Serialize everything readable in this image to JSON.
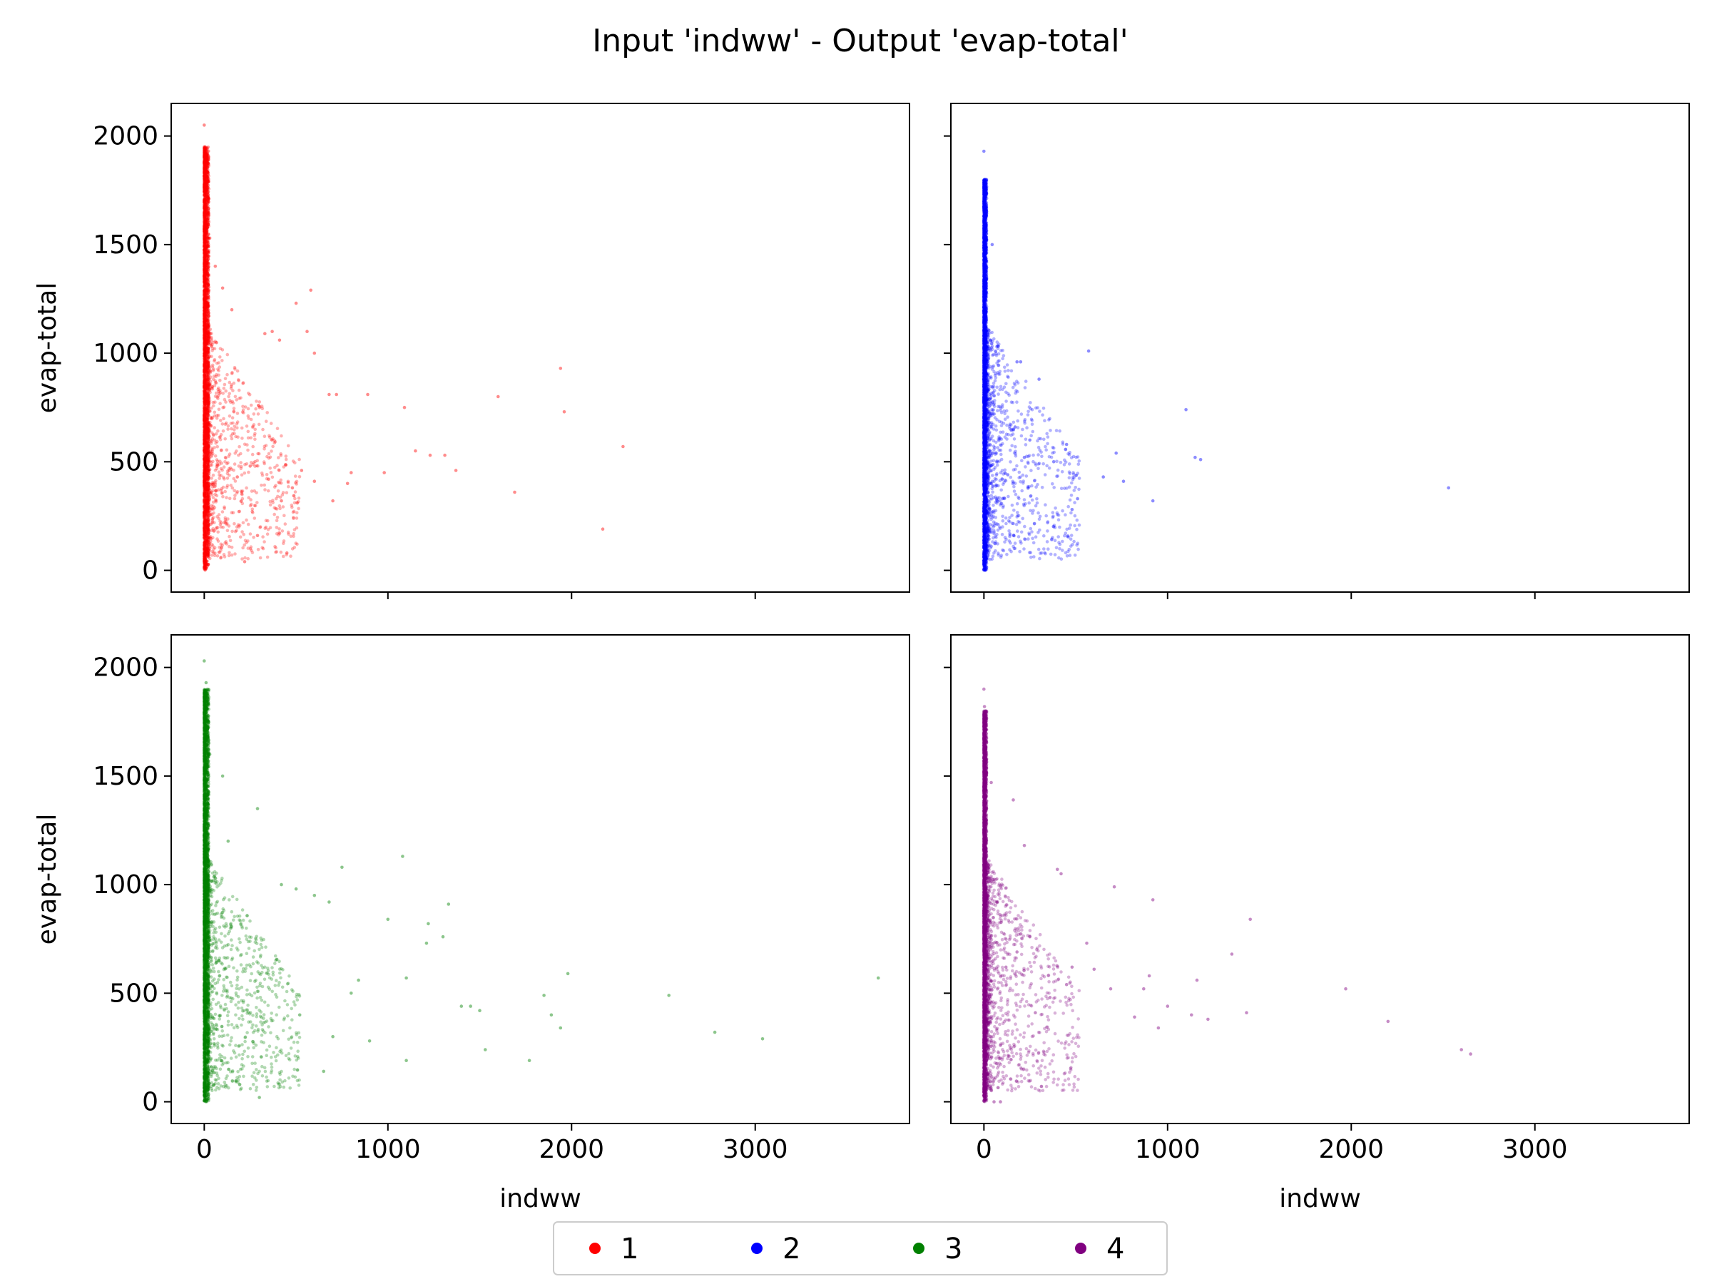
{
  "title": "Input 'indww' - Output 'evap-total'",
  "colors": {
    "1": "#ff0000",
    "2": "#0000ff",
    "3": "#008000",
    "4": "#800080"
  },
  "legend": {
    "placement": "bottom-center",
    "entries": [
      "1",
      "2",
      "3",
      "4"
    ]
  },
  "chart_data": {
    "type": "scatter",
    "layout": "2x2 grid, shared x and y axes",
    "xlabel": "indww",
    "ylabel": "evap-total",
    "xlim": [
      -180,
      3840
    ],
    "ylim": [
      -100,
      2150
    ],
    "xticks": [
      0,
      1000,
      2000,
      3000
    ],
    "yticks": [
      0,
      500,
      1000,
      1500,
      2000
    ],
    "grid": false,
    "panels": [
      {
        "series": "1",
        "color": "#ff0000",
        "dense_band": {
          "x_range": [
            0,
            25
          ],
          "y_range": [
            0,
            1950
          ]
        },
        "points": [
          [
            0,
            2050
          ],
          [
            5,
            1950
          ],
          [
            12,
            1880
          ],
          [
            30,
            1530
          ],
          [
            60,
            1400
          ],
          [
            100,
            1300
          ],
          [
            150,
            1200
          ],
          [
            500,
            1230
          ],
          [
            580,
            1290
          ],
          [
            560,
            1100
          ],
          [
            330,
            1090
          ],
          [
            370,
            1100
          ],
          [
            410,
            1060
          ],
          [
            600,
            1000
          ],
          [
            680,
            810
          ],
          [
            720,
            810
          ],
          [
            890,
            810
          ],
          [
            1090,
            750
          ],
          [
            1600,
            800
          ],
          [
            1940,
            930
          ],
          [
            1960,
            730
          ],
          [
            1150,
            550
          ],
          [
            1230,
            530
          ],
          [
            1310,
            530
          ],
          [
            1370,
            460
          ],
          [
            2280,
            570
          ],
          [
            800,
            450
          ],
          [
            780,
            400
          ],
          [
            980,
            450
          ],
          [
            700,
            320
          ],
          [
            1690,
            360
          ],
          [
            2170,
            190
          ],
          [
            450,
            80
          ],
          [
            220,
            40
          ],
          [
            290,
            160
          ],
          [
            350,
            420
          ],
          [
            420,
            320
          ],
          [
            480,
            380
          ],
          [
            530,
            460
          ],
          [
            600,
            410
          ],
          [
            250,
            480
          ],
          [
            180,
            430
          ]
        ]
      },
      {
        "series": "2",
        "color": "#0000ff",
        "dense_band": {
          "x_range": [
            0,
            15
          ],
          "y_range": [
            0,
            1800
          ]
        },
        "points": [
          [
            0,
            1930
          ],
          [
            5,
            1800
          ],
          [
            45,
            1500
          ],
          [
            180,
            960
          ],
          [
            200,
            960
          ],
          [
            300,
            880
          ],
          [
            570,
            1010
          ],
          [
            1100,
            740
          ],
          [
            1150,
            520
          ],
          [
            1180,
            510
          ],
          [
            2530,
            380
          ],
          [
            450,
            580
          ],
          [
            480,
            280
          ],
          [
            510,
            330
          ],
          [
            650,
            430
          ],
          [
            720,
            540
          ],
          [
            760,
            410
          ],
          [
            920,
            320
          ],
          [
            130,
            440
          ],
          [
            220,
            520
          ],
          [
            250,
            600
          ],
          [
            380,
            500
          ],
          [
            170,
            660
          ]
        ]
      },
      {
        "series": "3",
        "color": "#008000",
        "dense_band": {
          "x_range": [
            0,
            25
          ],
          "y_range": [
            0,
            1900
          ]
        },
        "points": [
          [
            0,
            2030
          ],
          [
            10,
            1930
          ],
          [
            30,
            1600
          ],
          [
            100,
            1500
          ],
          [
            290,
            1350
          ],
          [
            130,
            1200
          ],
          [
            750,
            1080
          ],
          [
            1080,
            1130
          ],
          [
            420,
            1000
          ],
          [
            500,
            980
          ],
          [
            600,
            950
          ],
          [
            680,
            920
          ],
          [
            1000,
            840
          ],
          [
            1330,
            910
          ],
          [
            1220,
            820
          ],
          [
            1300,
            760
          ],
          [
            1210,
            730
          ],
          [
            1100,
            570
          ],
          [
            1400,
            440
          ],
          [
            1450,
            440
          ],
          [
            1500,
            420
          ],
          [
            1980,
            590
          ],
          [
            1850,
            490
          ],
          [
            1890,
            400
          ],
          [
            1940,
            340
          ],
          [
            2530,
            490
          ],
          [
            2780,
            320
          ],
          [
            3040,
            290
          ],
          [
            3670,
            570
          ],
          [
            1530,
            240
          ],
          [
            1770,
            190
          ],
          [
            1100,
            190
          ],
          [
            900,
            280
          ],
          [
            650,
            140
          ],
          [
            300,
            20
          ],
          [
            520,
            400
          ],
          [
            700,
            300
          ],
          [
            800,
            500
          ],
          [
            840,
            560
          ]
        ]
      },
      {
        "series": "4",
        "color": "#800080",
        "dense_band": {
          "x_range": [
            0,
            15
          ],
          "y_range": [
            0,
            1800
          ]
        },
        "points": [
          [
            0,
            1900
          ],
          [
            3,
            1820
          ],
          [
            40,
            1470
          ],
          [
            160,
            1390
          ],
          [
            220,
            1180
          ],
          [
            400,
            1070
          ],
          [
            420,
            1050
          ],
          [
            710,
            990
          ],
          [
            920,
            930
          ],
          [
            1450,
            840
          ],
          [
            1350,
            680
          ],
          [
            1160,
            560
          ],
          [
            1130,
            400
          ],
          [
            1220,
            380
          ],
          [
            1430,
            410
          ],
          [
            1970,
            520
          ],
          [
            2200,
            370
          ],
          [
            2650,
            220
          ],
          [
            2600,
            240
          ],
          [
            870,
            520
          ],
          [
            900,
            580
          ],
          [
            1000,
            440
          ],
          [
            950,
            340
          ],
          [
            820,
            390
          ],
          [
            690,
            520
          ],
          [
            600,
            610
          ],
          [
            560,
            730
          ],
          [
            480,
            620
          ],
          [
            450,
            540
          ],
          [
            360,
            480
          ],
          [
            280,
            410
          ],
          [
            250,
            760
          ],
          [
            180,
            690
          ],
          [
            120,
            620
          ],
          [
            90,
            260
          ],
          [
            55,
            0
          ],
          [
            90,
            0
          ]
        ]
      }
    ]
  }
}
